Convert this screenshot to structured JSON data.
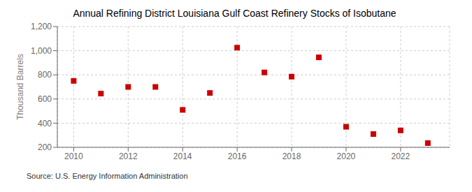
{
  "chart_data": {
    "type": "scatter",
    "title": "Annual Refining District Louisiana Gulf Coast Refinery Stocks of Isobutane",
    "ylabel": "Thousand Barrels",
    "annotation": "Source: U.S. Energy Information Administration",
    "x": [
      2010,
      2011,
      2012,
      2013,
      2014,
      2015,
      2016,
      2017,
      2018,
      2019,
      2020,
      2021,
      2022,
      2023
    ],
    "values": [
      750,
      645,
      700,
      700,
      510,
      650,
      1025,
      820,
      785,
      945,
      370,
      310,
      340,
      235
    ],
    "color": "#cc0000",
    "marker": "square",
    "xlim": [
      2009.4,
      2023.8
    ],
    "ylim": [
      200,
      1200
    ],
    "xticks": [
      2010,
      2012,
      2014,
      2016,
      2018,
      2020,
      2022
    ],
    "yticks": [
      200,
      400,
      600,
      800,
      {
        "value": 1000,
        "label": "1,000"
      },
      {
        "value": 1200,
        "label": "1,200"
      }
    ],
    "grid": true
  }
}
